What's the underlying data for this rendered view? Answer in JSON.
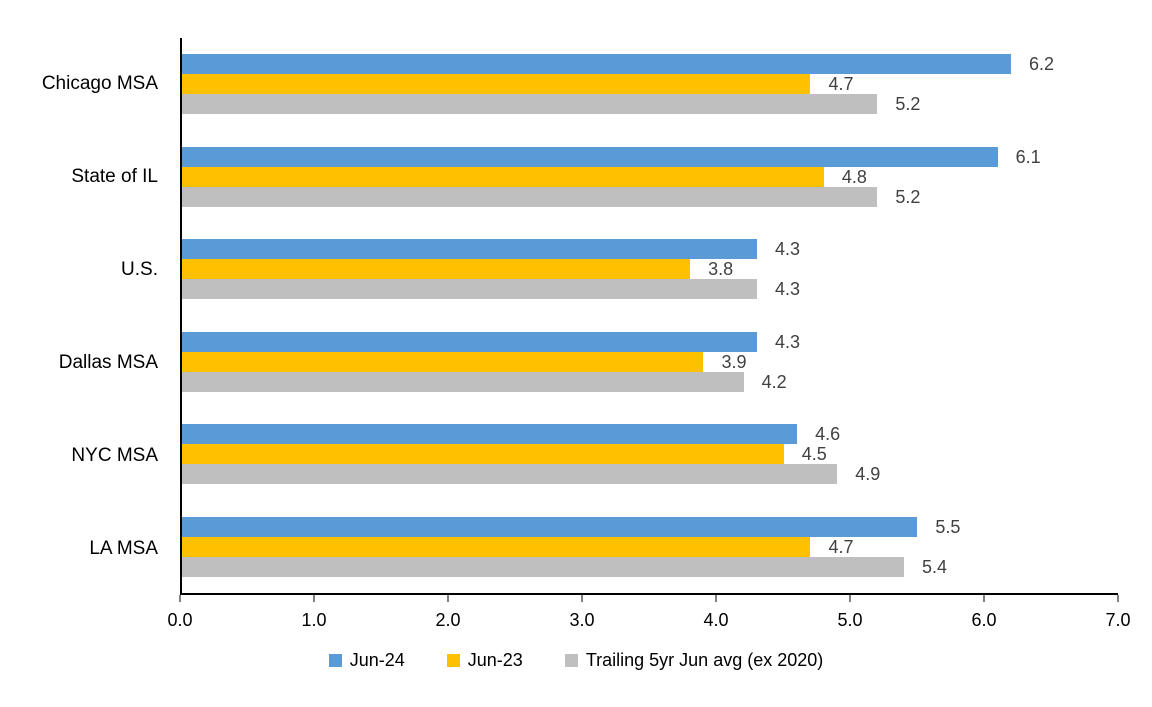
{
  "chart_data": {
    "type": "bar",
    "orientation": "horizontal",
    "title": "",
    "xlabel": "",
    "ylabel": "",
    "categories": [
      "Chicago MSA",
      "State of IL",
      "U.S.",
      "Dallas MSA",
      "NYC MSA",
      "LA MSA"
    ],
    "series": [
      {
        "name": "Jun-24",
        "color": "#5B9BD5",
        "values": [
          6.2,
          6.1,
          4.3,
          4.3,
          4.6,
          5.5
        ]
      },
      {
        "name": "Jun-23",
        "color": "#FFC000",
        "values": [
          4.7,
          4.8,
          3.8,
          3.9,
          4.5,
          4.7
        ]
      },
      {
        "name": "Trailing 5yr Jun avg (ex 2020)",
        "color": "#BFBFBF",
        "values": [
          5.2,
          5.2,
          4.3,
          4.2,
          4.9,
          5.4
        ]
      }
    ],
    "xlim": [
      0,
      7
    ],
    "x_ticks": [
      "0.0",
      "1.0",
      "2.0",
      "3.0",
      "4.0",
      "5.0",
      "6.0",
      "7.0"
    ],
    "grid": false,
    "legend_position": "bottom",
    "data_labels": true
  },
  "colors": {
    "background": "#FFFFFF",
    "axis_line": "#000000",
    "category_label": "#000000",
    "tick_label": "#000000",
    "value_label": "#404040"
  }
}
